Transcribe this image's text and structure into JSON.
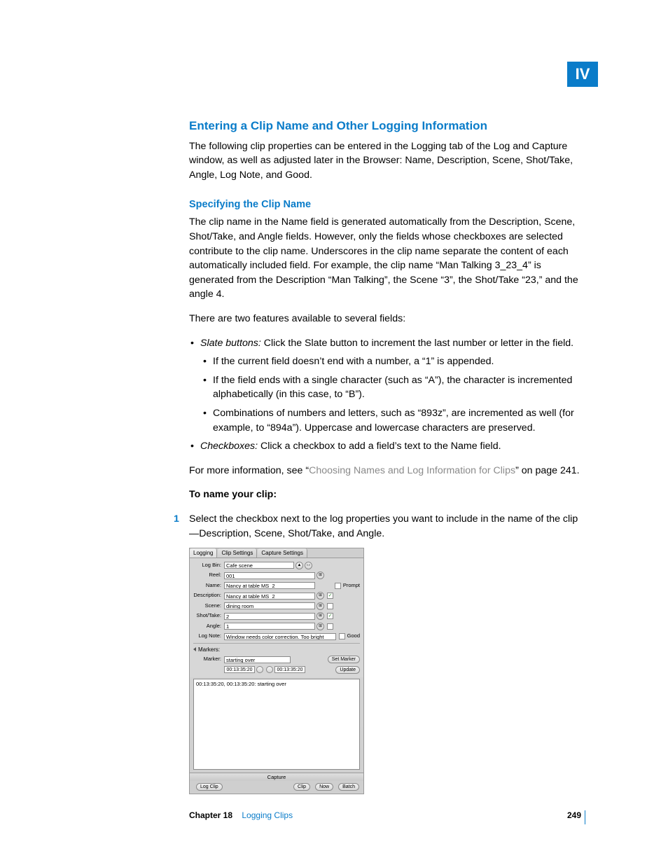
{
  "part_label": "IV",
  "heading": "Entering a Clip Name and Other Logging Information",
  "intro": "The following clip properties can be entered in the Logging tab of the Log and Capture window, as well as adjusted later in the Browser:  Name, Description, Scene, Shot/Take, Angle, Log Note, and Good.",
  "sub1": "Specifying the Clip Name",
  "p1": "The clip name in the Name field is generated automatically from the Description, Scene, Shot/Take, and Angle fields. However, only the fields whose checkboxes are selected contribute to the clip name. Underscores in the clip name separate the content of each automatically included field. For example, the clip name “Man Talking 3_23_4” is generated from the Description “Man Talking”, the Scene “3”, the Shot/Take “23,” and the angle 4.",
  "p2": "There are two features available to several fields:",
  "bullet_slate_label": "Slate buttons:",
  "bullet_slate_text": "  Click the Slate button to increment the last number or letter in the field.",
  "sub_b1": "If the current field doesn’t end with a number, a “1” is appended.",
  "sub_b2": "If the field ends with a single character (such as “A”), the character is incremented alphabetically (in this case, to “B”).",
  "sub_b3": "Combinations of numbers and letters, such as “893z”, are incremented as well (for example, to “894a”). Uppercase and lowercase characters are preserved.",
  "bullet_chk_label": "Checkboxes:",
  "bullet_chk_text": "  Click a checkbox to add a field’s text to the Name field.",
  "p3_a": "For more information, see “",
  "p3_link": "Choosing Names and Log Information for Clips",
  "p3_b": "” on page 241.",
  "task_head": "To name your clip:",
  "step1_num": "1",
  "step1": "Select the checkbox next to the log properties you want to include in the name of the clip—Description, Scene, Shot/Take, and Angle.",
  "shot": {
    "tabs": [
      "Logging",
      "Clip Settings",
      "Capture Settings"
    ],
    "logbin_label": "Log Bin:",
    "logbin_value": "Cafe scene",
    "reel_label": "Reel:",
    "reel_value": "001",
    "name_label": "Name:",
    "name_value": "Nancy at table MS_2",
    "prompt": "Prompt",
    "desc_label": "Description:",
    "desc_value": "Nancy at table MS_2",
    "scene_label": "Scene:",
    "scene_value": "dining room",
    "shot_label": "Shot/Take:",
    "shot_value": "2",
    "angle_label": "Angle:",
    "angle_value": "1",
    "lognote_label": "Log Note:",
    "lognote_value": "Window needs color correction. Too bright",
    "good": "Good",
    "markers_label": "Markers:",
    "marker_label": "Marker:",
    "marker_value": "starting over",
    "set_marker": "Set Marker",
    "tc1": "00:13:35:20",
    "tc2": "00:13:35:20",
    "update": "Update",
    "mlist": "00:13:35:20, 00:13:35:20: starting over",
    "capture": "Capture",
    "logclip": "Log Clip",
    "clip": "Clip",
    "now": "Now",
    "batch": "Batch"
  },
  "footer": {
    "chapter": "Chapter 18",
    "title": "Logging Clips",
    "page": "249"
  },
  "colors": {
    "accent": "#0a7cc9",
    "link_grey": "#8a8a8a",
    "panel_bg": "#d7d7d7"
  }
}
